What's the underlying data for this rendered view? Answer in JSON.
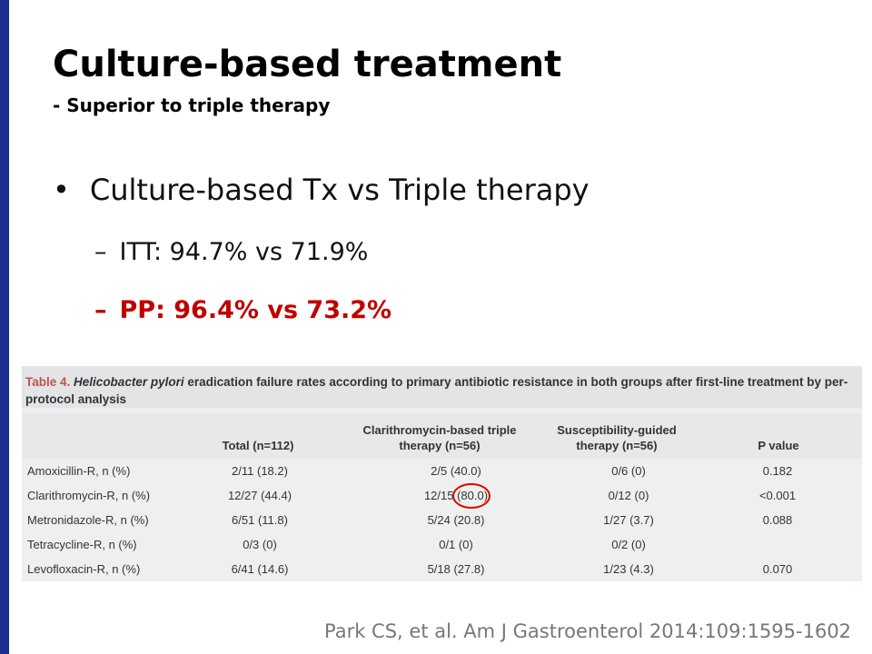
{
  "header": {
    "title": "Culture-based treatment",
    "subtitle": "- Superior to triple therapy"
  },
  "bullets": {
    "main": "Culture-based  Tx vs Triple therapy",
    "sub": [
      "ITT: 94.7% vs 71.9%",
      "PP: 96.4% vs 73.2%"
    ]
  },
  "table": {
    "caption": {
      "label": "Table 4.",
      "organism": "Helicobacter pylori",
      "text": " eradication failure rates according to primary antibiotic resistance in both groups after first-line treatment by per-protocol analysis"
    },
    "headers": [
      "Total (n=112)",
      "Clarithromycin-based triple therapy (n=56)",
      "Susceptibility-guided therapy (n=56)",
      "P value"
    ],
    "rows": [
      [
        "Amoxicillin-R, n (%)",
        "2/11 (18.2)",
        "2/5 (40.0)",
        "0/6 (0)",
        "0.182"
      ],
      [
        "Clarithromycin-R, n (%)",
        "12/27 (44.4)",
        "12/15 (80.0)",
        "0/12 (0)",
        "<0.001"
      ],
      [
        "Metronidazole-R, n (%)",
        "6/51 (11.8)",
        "5/24 (20.8)",
        "1/27 (3.7)",
        "0.088"
      ],
      [
        "Tetracycline-R, n (%)",
        "0/3 (0)",
        "0/1 (0)",
        "0/2 (0)",
        null
      ],
      [
        "Levofloxacin-R, n (%)",
        "6/41 (14.6)",
        "5/18 (27.8)",
        "1/23 (4.3)",
        "0.070"
      ]
    ]
  },
  "citation": "Park CS, et al. Am J Gastroenterol 2014:109:1595-1602"
}
